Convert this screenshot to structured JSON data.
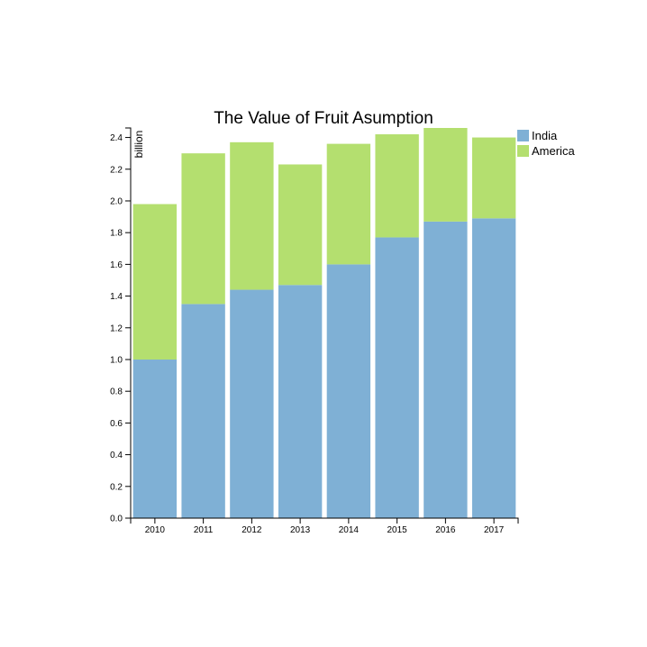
{
  "chart_data": {
    "type": "bar",
    "stacked": true,
    "title": "The Value of Fruit Asumption",
    "xlabel": "",
    "ylabel": "billion",
    "categories": [
      "2010",
      "2011",
      "2012",
      "2013",
      "2014",
      "2015",
      "2016",
      "2017"
    ],
    "series": [
      {
        "name": "India",
        "color": "#7fb0d5",
        "values": [
          1.0,
          1.35,
          1.44,
          1.47,
          1.6,
          1.77,
          1.87,
          1.89
        ]
      },
      {
        "name": "America",
        "color": "#b4df6f",
        "values": [
          0.98,
          0.95,
          0.93,
          0.76,
          0.76,
          0.65,
          0.59,
          0.51
        ]
      }
    ],
    "ylim": [
      0,
      2.46
    ],
    "yticks": [
      "0.0",
      "0.2",
      "0.4",
      "0.6",
      "0.8",
      "1.0",
      "1.2",
      "1.4",
      "1.6",
      "1.8",
      "2.0",
      "2.2",
      "2.4"
    ],
    "legend": "top-right",
    "grid": false
  }
}
